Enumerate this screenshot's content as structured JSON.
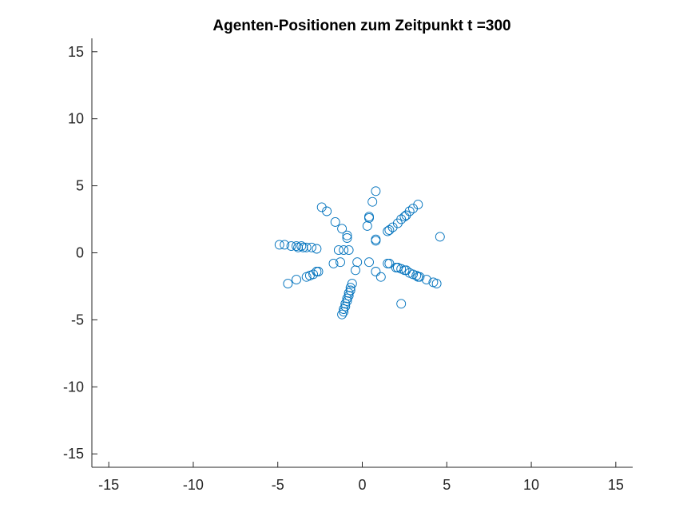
{
  "chart_data": {
    "type": "scatter",
    "title": "Agenten-Positionen zum Zeitpunkt t =300",
    "xlabel": "",
    "ylabel": "",
    "xlim": [
      -16,
      16
    ],
    "ylim": [
      -16,
      16
    ],
    "xticks": [
      -15,
      -10,
      -5,
      0,
      5,
      10,
      15
    ],
    "yticks": [
      -15,
      -10,
      -5,
      0,
      5,
      10,
      15
    ],
    "xtick_labels": [
      "-15",
      "-10",
      "-5",
      "0",
      "5",
      "10",
      "15"
    ],
    "ytick_labels": [
      "-15",
      "-10",
      "-5",
      "0",
      "5",
      "10",
      "15"
    ],
    "grid": false,
    "legend": "none",
    "marker": "open-circle",
    "marker_color": "#0072BD",
    "axis_color": "#262626",
    "series": [
      {
        "points": [
          [
            0.8,
            4.6
          ],
          [
            0.6,
            3.8
          ],
          [
            0.4,
            2.7
          ],
          [
            0.4,
            2.6
          ],
          [
            0.3,
            2.0
          ],
          [
            0.8,
            1.0
          ],
          [
            0.8,
            0.9
          ],
          [
            -2.4,
            3.4
          ],
          [
            -2.1,
            3.1
          ],
          [
            -1.6,
            2.3
          ],
          [
            -1.2,
            1.8
          ],
          [
            -0.9,
            1.3
          ],
          [
            -0.9,
            1.1
          ],
          [
            -1.4,
            0.2
          ],
          [
            -1.1,
            0.2
          ],
          [
            -0.8,
            0.2
          ],
          [
            -4.9,
            0.6
          ],
          [
            -4.6,
            0.6
          ],
          [
            -4.2,
            0.5
          ],
          [
            -3.9,
            0.5
          ],
          [
            -3.8,
            0.4
          ],
          [
            -3.6,
            0.5
          ],
          [
            -3.5,
            0.4
          ],
          [
            -3.3,
            0.4
          ],
          [
            -3.0,
            0.4
          ],
          [
            -2.7,
            0.3
          ],
          [
            -1.7,
            -0.8
          ],
          [
            -1.3,
            -0.7
          ],
          [
            -0.3,
            -0.7
          ],
          [
            0.4,
            -0.7
          ],
          [
            -4.4,
            -2.3
          ],
          [
            -3.9,
            -2.0
          ],
          [
            -3.3,
            -1.8
          ],
          [
            -3.1,
            -1.7
          ],
          [
            -2.9,
            -1.6
          ],
          [
            -2.7,
            -1.4
          ],
          [
            -2.6,
            -1.4
          ],
          [
            -0.4,
            -1.3
          ],
          [
            0.8,
            -1.4
          ],
          [
            1.1,
            -1.8
          ],
          [
            -0.6,
            -2.3
          ],
          [
            -0.7,
            -2.6
          ],
          [
            -0.7,
            -2.8
          ],
          [
            -0.8,
            -3.0
          ],
          [
            -0.8,
            -3.2
          ],
          [
            -0.9,
            -3.4
          ],
          [
            -0.9,
            -3.6
          ],
          [
            -1.0,
            -3.8
          ],
          [
            -1.0,
            -4.0
          ],
          [
            -1.1,
            -4.2
          ],
          [
            -1.1,
            -4.4
          ],
          [
            -1.2,
            -4.6
          ],
          [
            1.5,
            1.6
          ],
          [
            1.6,
            1.7
          ],
          [
            1.8,
            1.9
          ],
          [
            2.1,
            2.2
          ],
          [
            2.3,
            2.5
          ],
          [
            2.5,
            2.7
          ],
          [
            2.6,
            2.8
          ],
          [
            2.8,
            3.1
          ],
          [
            3.0,
            3.3
          ],
          [
            3.3,
            3.6
          ],
          [
            4.6,
            1.2
          ],
          [
            1.5,
            -0.8
          ],
          [
            1.6,
            -0.8
          ],
          [
            2.0,
            -1.1
          ],
          [
            2.1,
            -1.1
          ],
          [
            2.3,
            -1.2
          ],
          [
            2.5,
            -1.3
          ],
          [
            2.6,
            -1.3
          ],
          [
            2.8,
            -1.5
          ],
          [
            3.0,
            -1.6
          ],
          [
            3.2,
            -1.7
          ],
          [
            3.3,
            -1.8
          ],
          [
            3.4,
            -1.8
          ],
          [
            3.8,
            -2.0
          ],
          [
            4.2,
            -2.2
          ],
          [
            4.4,
            -2.3
          ],
          [
            2.3,
            -3.8
          ]
        ]
      }
    ]
  }
}
